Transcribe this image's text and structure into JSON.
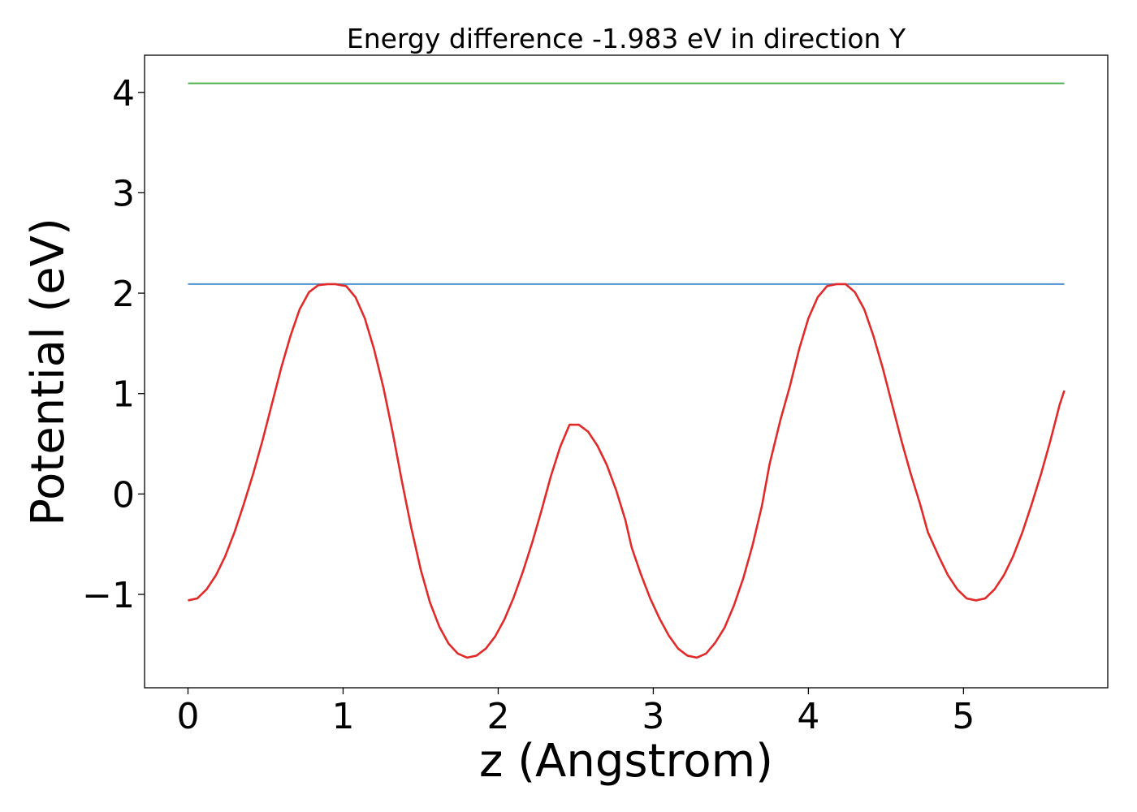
{
  "chart_data": {
    "type": "line",
    "title": "Energy difference -1.983 eV in direction Y",
    "xlabel": "z (Angstrom)",
    "ylabel": "Potential (eV)",
    "xlim": [
      -0.28,
      5.93
    ],
    "ylim": [
      -1.93,
      4.37
    ],
    "xticks": [
      0,
      1,
      2,
      3,
      4,
      5
    ],
    "xtick_labels": [
      "0",
      "1",
      "2",
      "3",
      "4",
      "5"
    ],
    "yticks": [
      -1,
      0,
      1,
      2,
      3,
      4
    ],
    "ytick_labels": [
      "−1",
      "0",
      "1",
      "2",
      "3",
      "4"
    ],
    "grid": false,
    "series": [
      {
        "color": "#4c8fcb",
        "x": [
          0,
          5.65
        ],
        "y": [
          2.09,
          2.09
        ]
      },
      {
        "color": "#4fae4f",
        "x": [
          0,
          5.65
        ],
        "y": [
          4.09,
          4.09
        ]
      },
      {
        "color": "#e12a2a",
        "x": [
          0,
          0.06,
          0.12,
          0.18,
          0.24,
          0.3,
          0.36,
          0.42,
          0.48,
          0.54,
          0.6,
          0.66,
          0.72,
          0.78,
          0.84,
          0.9,
          0.95,
          1.02,
          1.08,
          1.14,
          1.2,
          1.26,
          1.32,
          1.38,
          1.44,
          1.5,
          1.56,
          1.62,
          1.68,
          1.74,
          1.8,
          1.86,
          1.92,
          1.98,
          2.04,
          2.1,
          2.16,
          2.22,
          2.28,
          2.34,
          2.4,
          2.46,
          2.52,
          2.58,
          2.64,
          2.7,
          2.76,
          2.82,
          2.86,
          2.92,
          2.98,
          3.04,
          3.1,
          3.16,
          3.22,
          3.28,
          3.34,
          3.4,
          3.46,
          3.52,
          3.58,
          3.64,
          3.7,
          3.75,
          3.82,
          3.88,
          3.94,
          4.0,
          4.06,
          4.12,
          4.18,
          4.24,
          4.3,
          4.36,
          4.42,
          4.48,
          4.54,
          4.6,
          4.66,
          4.72,
          4.77,
          4.84,
          4.9,
          4.96,
          5.02,
          5.08,
          5.14,
          5.2,
          5.26,
          5.32,
          5.38,
          5.44,
          5.5,
          5.56,
          5.62,
          5.65
        ],
        "y": [
          -1.06,
          -1.04,
          -0.95,
          -0.81,
          -0.62,
          -0.38,
          -0.1,
          0.2,
          0.53,
          0.89,
          1.25,
          1.57,
          1.84,
          2.01,
          2.08,
          2.09,
          2.09,
          2.07,
          1.96,
          1.75,
          1.44,
          1.06,
          0.61,
          0.12,
          -0.34,
          -0.75,
          -1.08,
          -1.32,
          -1.49,
          -1.59,
          -1.63,
          -1.61,
          -1.54,
          -1.42,
          -1.25,
          -1.03,
          -0.77,
          -0.48,
          -0.16,
          0.18,
          0.47,
          0.69,
          0.69,
          0.62,
          0.48,
          0.29,
          0.04,
          -0.26,
          -0.53,
          -0.8,
          -1.04,
          -1.24,
          -1.41,
          -1.54,
          -1.61,
          -1.63,
          -1.59,
          -1.48,
          -1.33,
          -1.11,
          -0.84,
          -0.51,
          -0.12,
          0.3,
          0.74,
          1.07,
          1.44,
          1.75,
          1.96,
          2.07,
          2.09,
          2.09,
          2.01,
          1.84,
          1.57,
          1.25,
          0.89,
          0.53,
          0.2,
          -0.1,
          -0.38,
          -0.62,
          -0.81,
          -0.95,
          -1.04,
          -1.06,
          -1.04,
          -0.95,
          -0.81,
          -0.62,
          -0.38,
          -0.1,
          0.2,
          0.53,
          0.89,
          1.03
        ]
      }
    ]
  }
}
